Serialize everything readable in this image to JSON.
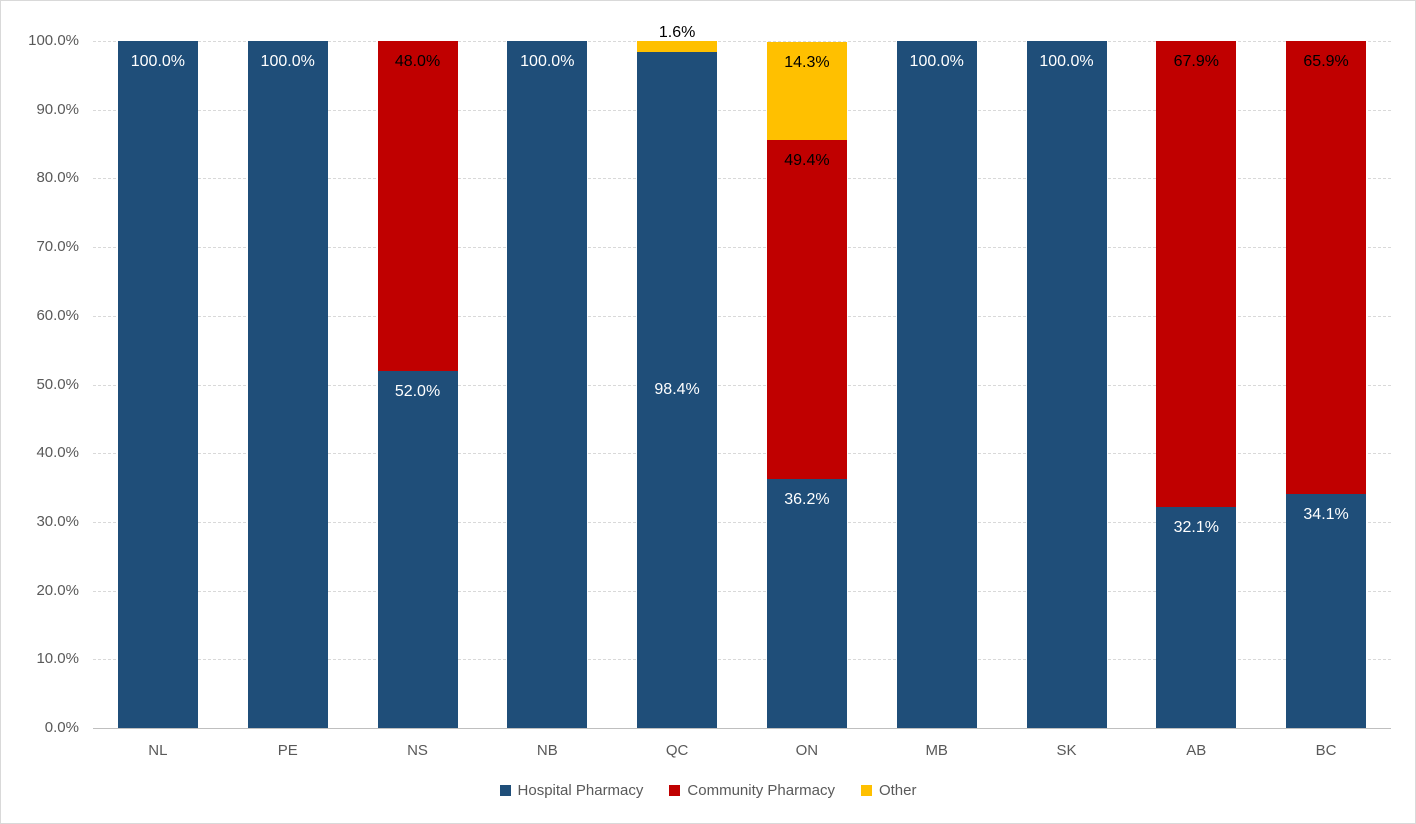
{
  "chart_data": {
    "type": "bar",
    "stacked": true,
    "orientation": "vertical",
    "title": "",
    "xlabel": "",
    "ylabel": "",
    "categories": [
      "NL",
      "PE",
      "NS",
      "NB",
      "QC",
      "ON",
      "MB",
      "SK",
      "AB",
      "BC"
    ],
    "series": [
      {
        "name": "Hospital Pharmacy",
        "color": "#1F4E79",
        "values": [
          100.0,
          100.0,
          52.0,
          100.0,
          98.4,
          36.2,
          100.0,
          100.0,
          32.1,
          34.1
        ]
      },
      {
        "name": "Community Pharmacy",
        "color": "#C00000",
        "values": [
          0,
          0,
          48.0,
          0,
          0,
          49.4,
          0,
          0,
          67.9,
          65.9
        ]
      },
      {
        "name": "Other",
        "color": "#FFC000",
        "values": [
          0,
          0,
          0,
          0,
          1.6,
          14.3,
          0,
          0,
          0,
          0
        ]
      }
    ],
    "data_labels": [
      {
        "category": "NL",
        "series": "Hospital Pharmacy",
        "text": "100.0%",
        "color": "#FFFFFF",
        "position": "inside-end"
      },
      {
        "category": "PE",
        "series": "Hospital Pharmacy",
        "text": "100.0%",
        "color": "#FFFFFF",
        "position": "inside-end"
      },
      {
        "category": "NS",
        "series": "Community Pharmacy",
        "text": "48.0%",
        "color": "#000000",
        "position": "inside-end"
      },
      {
        "category": "NS",
        "series": "Hospital Pharmacy",
        "text": "52.0%",
        "color": "#FFFFFF",
        "position": "inside-end"
      },
      {
        "category": "NB",
        "series": "Hospital Pharmacy",
        "text": "100.0%",
        "color": "#FFFFFF",
        "position": "inside-end"
      },
      {
        "category": "QC",
        "series": "Other",
        "text": "1.6%",
        "color": "#000000",
        "position": "outside-top"
      },
      {
        "category": "QC",
        "series": "Hospital Pharmacy",
        "text": "98.4%",
        "color": "#FFFFFF",
        "position": "center"
      },
      {
        "category": "ON",
        "series": "Other",
        "text": "14.3%",
        "color": "#000000",
        "position": "inside-end"
      },
      {
        "category": "ON",
        "series": "Community Pharmacy",
        "text": "49.4%",
        "color": "#000000",
        "position": "inside-end"
      },
      {
        "category": "ON",
        "series": "Hospital Pharmacy",
        "text": "36.2%",
        "color": "#FFFFFF",
        "position": "inside-end"
      },
      {
        "category": "MB",
        "series": "Hospital Pharmacy",
        "text": "100.0%",
        "color": "#FFFFFF",
        "position": "inside-end"
      },
      {
        "category": "SK",
        "series": "Hospital Pharmacy",
        "text": "100.0%",
        "color": "#FFFFFF",
        "position": "inside-end"
      },
      {
        "category": "AB",
        "series": "Community Pharmacy",
        "text": "67.9%",
        "color": "#000000",
        "position": "inside-end"
      },
      {
        "category": "AB",
        "series": "Hospital Pharmacy",
        "text": "32.1%",
        "color": "#FFFFFF",
        "position": "inside-end"
      },
      {
        "category": "BC",
        "series": "Community Pharmacy",
        "text": "65.9%",
        "color": "#000000",
        "position": "inside-end"
      },
      {
        "category": "BC",
        "series": "Hospital Pharmacy",
        "text": "34.1%",
        "color": "#FFFFFF",
        "position": "inside-end"
      }
    ],
    "y_axis": {
      "min": 0,
      "max": 100,
      "step": 10,
      "tick_labels": [
        "0.0%",
        "10.0%",
        "20.0%",
        "30.0%",
        "40.0%",
        "50.0%",
        "60.0%",
        "70.0%",
        "80.0%",
        "90.0%",
        "100.0%"
      ]
    },
    "grid": true,
    "legend": {
      "position": "bottom",
      "items": [
        {
          "label": "Hospital Pharmacy",
          "color": "#1F4E79"
        },
        {
          "label": "Community Pharmacy",
          "color": "#C00000"
        },
        {
          "label": "Other",
          "color": "#FFC000"
        }
      ]
    },
    "colors": {
      "background": "#FFFFFF",
      "border": "#D9D9D9",
      "gridline": "#D9D9D9",
      "axis_line": "#BFBFBF",
      "axis_text": "#595959"
    }
  }
}
